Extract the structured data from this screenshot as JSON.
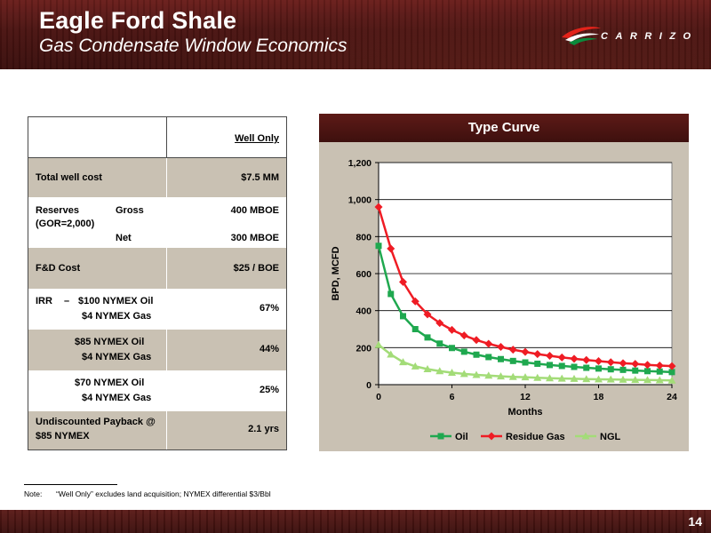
{
  "header": {
    "title": "Eagle Ford Shale",
    "subtitle": "Gas Condensate Window Economics",
    "logo_text": "CARRIZO"
  },
  "table": {
    "column_header": "Well Only",
    "rows": [
      {
        "label": "Total well cost",
        "value": "$7.5 MM"
      },
      {
        "label": "Reserves",
        "sub_gross": "Gross",
        "label2": "(GOR=2,000)",
        "sub_net": "Net",
        "value_gross": "400 MBOE",
        "value_net": "300 MBOE"
      },
      {
        "label": "F&D Cost",
        "value": "$25 / BOE"
      },
      {
        "label": "IRR",
        "dash": "–",
        "line1": "$100 NYMEX Oil",
        "line2": "$4 NYMEX Gas",
        "value": "67%"
      },
      {
        "line1": "$85 NYMEX Oil",
        "line2": "$4 NYMEX Gas",
        "value": "44%"
      },
      {
        "line1": "$70 NYMEX Oil",
        "line2": "$4 NYMEX Gas",
        "value": "25%"
      },
      {
        "line1": "Undiscounted Payback @",
        "line2": "$85 NYMEX",
        "value": "2.1 yrs"
      }
    ]
  },
  "chart_data": {
    "type": "line",
    "title": "Type Curve",
    "xlabel": "Months",
    "ylabel": "BPD, MCFD",
    "xlim": [
      0,
      24
    ],
    "ylim": [
      0,
      1200
    ],
    "x_ticks": [
      0,
      6,
      12,
      18,
      24
    ],
    "y_ticks": [
      0,
      200,
      400,
      600,
      800,
      1000,
      1200
    ],
    "x_tick_labels": [
      "0",
      "6",
      "12",
      "18",
      "24"
    ],
    "y_tick_labels": [
      "0",
      "200",
      "400",
      "600",
      "800",
      "1,000",
      "1,200"
    ],
    "grid": "horizontal",
    "legend": "bottom",
    "x": [
      0,
      1,
      2,
      3,
      4,
      5,
      6,
      7,
      8,
      9,
      10,
      11,
      12,
      13,
      14,
      15,
      16,
      17,
      18,
      19,
      20,
      21,
      22,
      23,
      24
    ],
    "series": [
      {
        "name": "Oil",
        "color": "#1fa84f",
        "marker": "square",
        "values": [
          750,
          490,
          370,
          300,
          255,
          222,
          198,
          178,
          162,
          149,
          138,
          128,
          120,
          113,
          106,
          101,
          96,
          91,
          87,
          83,
          80,
          76,
          73,
          71,
          68
        ]
      },
      {
        "name": "Residue Gas",
        "color": "#ef1c24",
        "marker": "diamond",
        "values": [
          960,
          735,
          555,
          450,
          380,
          333,
          296,
          266,
          241,
          221,
          204,
          189,
          177,
          165,
          156,
          147,
          140,
          133,
          127,
          121,
          116,
          112,
          107,
          103,
          100
        ]
      },
      {
        "name": "NGL",
        "color": "#a3dc78",
        "marker": "triangle",
        "values": [
          215,
          163,
          122,
          99,
          84,
          73,
          65,
          58,
          53,
          49,
          45,
          42,
          40,
          37,
          35,
          33,
          32,
          30,
          29,
          28,
          27,
          26,
          25,
          24,
          23
        ]
      }
    ]
  },
  "note": {
    "label": "Note:",
    "text": "“Well Only” excludes land acquisition; NYMEX differential $3/Bbl"
  },
  "footer": {
    "page_number": "14"
  }
}
